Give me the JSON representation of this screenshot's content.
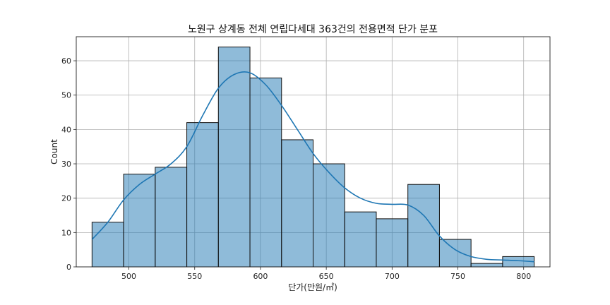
{
  "chart_data": {
    "type": "histogram",
    "title": "노원구 상계동 전체 연립다세대 363건의 전용면적 단가 분포",
    "xlabel": "단가(만원/㎡)",
    "ylabel": "Count",
    "xlim": [
      460,
      820
    ],
    "ylim": [
      0,
      67
    ],
    "xticks": [
      500,
      550,
      600,
      650,
      700,
      750,
      800
    ],
    "yticks": [
      0,
      10,
      20,
      30,
      40,
      50,
      60
    ],
    "grid": true,
    "bar_color": "#1f77b4",
    "bar_fill_opacity": 0.5,
    "edge_color": "#111111",
    "kde_color": "#1f77b4",
    "bins": [
      {
        "x0": 472,
        "x1": 496,
        "count": 13
      },
      {
        "x0": 496,
        "x1": 520,
        "count": 27
      },
      {
        "x0": 520,
        "x1": 544,
        "count": 29
      },
      {
        "x0": 544,
        "x1": 568,
        "count": 42
      },
      {
        "x0": 568,
        "x1": 592,
        "count": 64
      },
      {
        "x0": 592,
        "x1": 616,
        "count": 55
      },
      {
        "x0": 616,
        "x1": 640,
        "count": 37
      },
      {
        "x0": 640,
        "x1": 664,
        "count": 30
      },
      {
        "x0": 664,
        "x1": 688,
        "count": 16
      },
      {
        "x0": 688,
        "x1": 712,
        "count": 14
      },
      {
        "x0": 712,
        "x1": 736,
        "count": 24
      },
      {
        "x0": 736,
        "x1": 760,
        "count": 8
      },
      {
        "x0": 760,
        "x1": 784,
        "count": 1
      },
      {
        "x0": 784,
        "x1": 808,
        "count": 3
      }
    ],
    "kde": [
      [
        472,
        8
      ],
      [
        484,
        13
      ],
      [
        496,
        19.5
      ],
      [
        508,
        24
      ],
      [
        520,
        27
      ],
      [
        532,
        30
      ],
      [
        544,
        35
      ],
      [
        556,
        44
      ],
      [
        568,
        52
      ],
      [
        580,
        56
      ],
      [
        592,
        56.5
      ],
      [
        604,
        53
      ],
      [
        616,
        47
      ],
      [
        628,
        40
      ],
      [
        640,
        33
      ],
      [
        652,
        27.5
      ],
      [
        664,
        23
      ],
      [
        676,
        20
      ],
      [
        688,
        18.5
      ],
      [
        700,
        18.2
      ],
      [
        712,
        18
      ],
      [
        724,
        15
      ],
      [
        736,
        9
      ],
      [
        748,
        5
      ],
      [
        760,
        3
      ],
      [
        772,
        2.2
      ],
      [
        784,
        2
      ],
      [
        796,
        1.8
      ],
      [
        808,
        1.5
      ]
    ]
  }
}
